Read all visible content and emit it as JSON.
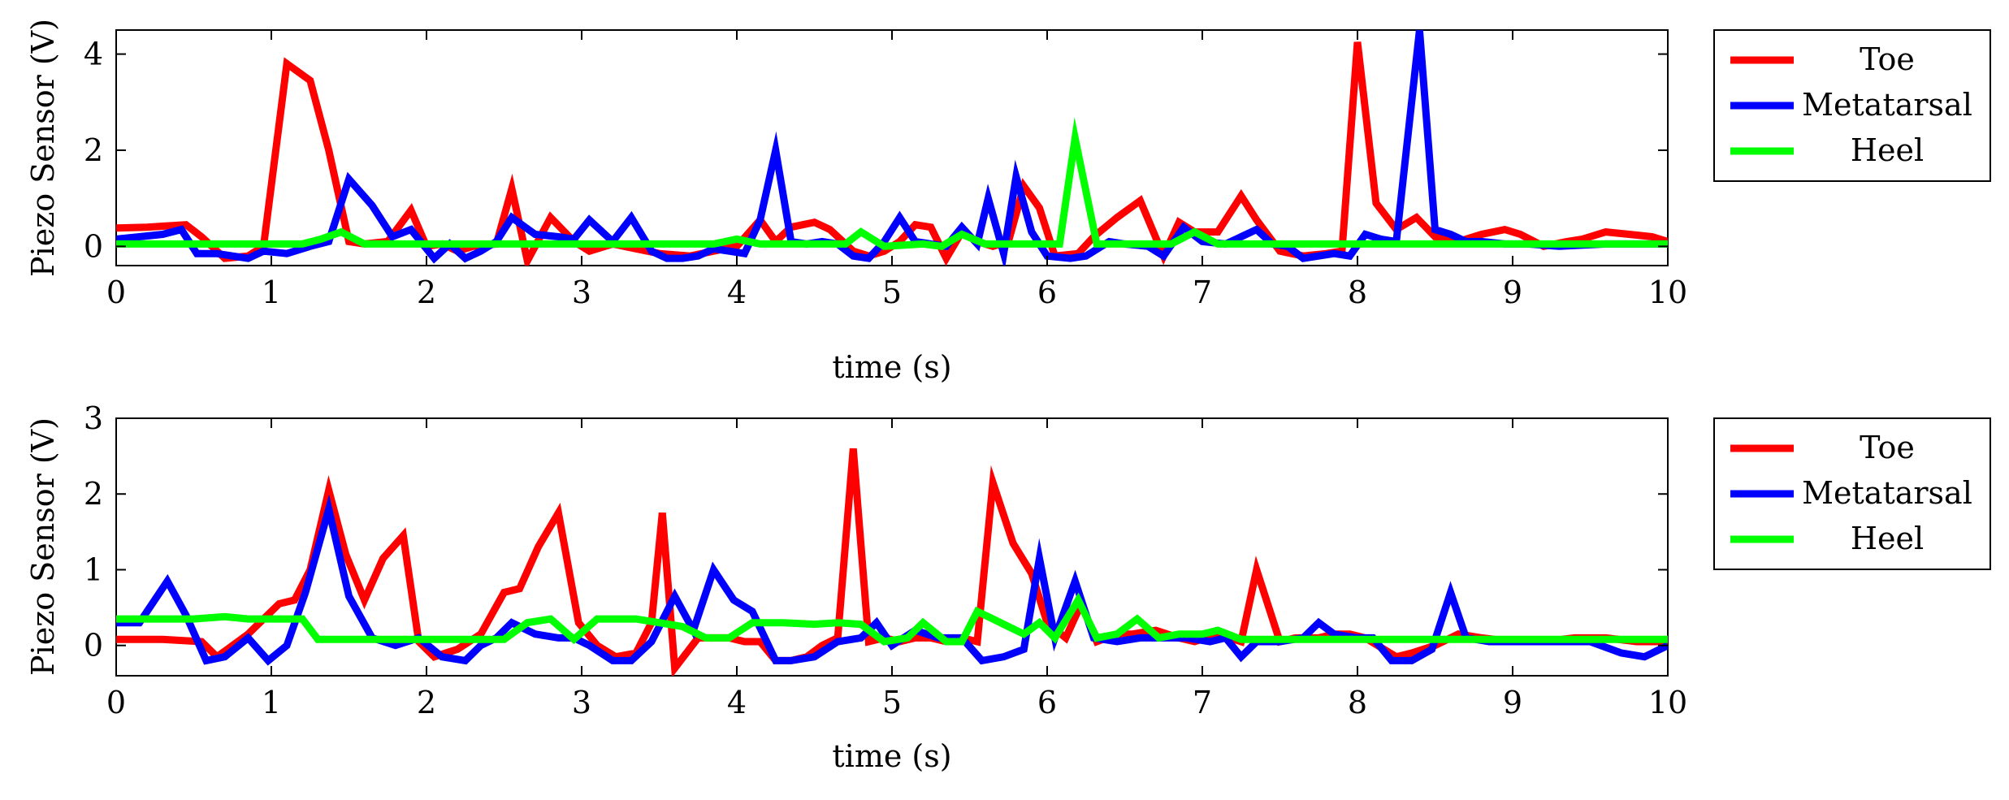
{
  "chart_data": [
    {
      "type": "line",
      "xlabel": "time (s)",
      "ylabel": "Piezo Sensor (V)",
      "xlim": [
        0,
        10
      ],
      "ylim": [
        -0.4,
        4.5
      ],
      "xticks": [
        0,
        1,
        2,
        3,
        4,
        5,
        6,
        7,
        8,
        9,
        10
      ],
      "yticks": [
        0,
        2,
        4
      ],
      "grid": false,
      "legend": "outside-right-top",
      "series": [
        {
          "name": "Toe",
          "color": "#ff0000",
          "x": [
            0,
            0.2,
            0.3,
            0.45,
            0.55,
            0.7,
            0.85,
            0.95,
            1.1,
            1.25,
            1.37,
            1.5,
            1.6,
            1.75,
            1.9,
            2.0,
            2.1,
            2.2,
            2.3,
            2.45,
            2.55,
            2.65,
            2.8,
            2.95,
            3.05,
            3.2,
            3.35,
            3.5,
            3.7,
            3.85,
            4.0,
            4.15,
            4.25,
            4.35,
            4.5,
            4.6,
            4.75,
            4.85,
            4.95,
            5.05,
            5.15,
            5.25,
            5.35,
            5.45,
            5.55,
            5.65,
            5.75,
            5.85,
            5.95,
            6.05,
            6.2,
            6.3,
            6.45,
            6.6,
            6.75,
            6.85,
            6.95,
            7.1,
            7.25,
            7.35,
            7.5,
            7.65,
            7.8,
            7.9,
            8.0,
            8.12,
            8.25,
            8.38,
            8.5,
            8.65,
            8.8,
            8.95,
            9.05,
            9.2,
            9.35,
            9.45,
            9.6,
            9.75,
            9.9,
            10.0
          ],
          "y": [
            0.38,
            0.4,
            0.42,
            0.45,
            0.2,
            -0.25,
            -0.2,
            0.0,
            3.8,
            3.45,
            2.0,
            0.1,
            0.05,
            0.1,
            0.75,
            0.0,
            0.05,
            -0.1,
            0.0,
            0.05,
            1.2,
            -0.3,
            0.6,
            0.1,
            -0.1,
            0.05,
            -0.05,
            -0.15,
            -0.2,
            -0.1,
            0.0,
            0.55,
            0.1,
            0.4,
            0.5,
            0.35,
            -0.1,
            -0.2,
            -0.1,
            0.1,
            0.45,
            0.4,
            -0.25,
            0.3,
            0.1,
            0.0,
            0.1,
            1.25,
            0.8,
            -0.2,
            -0.15,
            0.2,
            0.6,
            0.95,
            -0.2,
            0.5,
            0.3,
            0.3,
            1.05,
            0.55,
            -0.1,
            -0.2,
            -0.15,
            -0.1,
            4.25,
            0.9,
            0.35,
            0.6,
            0.2,
            0.1,
            0.25,
            0.35,
            0.25,
            0.0,
            0.1,
            0.15,
            0.3,
            0.25,
            0.2,
            0.1
          ]
        },
        {
          "name": "Metatarsal",
          "color": "#0000ff",
          "x": [
            0,
            0.15,
            0.3,
            0.42,
            0.52,
            0.65,
            0.75,
            0.85,
            0.95,
            1.1,
            1.25,
            1.37,
            1.5,
            1.65,
            1.78,
            1.9,
            2.05,
            2.15,
            2.25,
            2.35,
            2.45,
            2.55,
            2.7,
            2.85,
            2.95,
            3.05,
            3.2,
            3.32,
            3.45,
            3.55,
            3.65,
            3.75,
            3.85,
            3.95,
            4.05,
            4.15,
            4.25,
            4.35,
            4.45,
            4.55,
            4.65,
            4.75,
            4.85,
            4.95,
            5.05,
            5.15,
            5.25,
            5.35,
            5.45,
            5.55,
            5.62,
            5.72,
            5.8,
            5.9,
            6.0,
            6.15,
            6.25,
            6.4,
            6.5,
            6.65,
            6.75,
            6.88,
            7.0,
            7.15,
            7.25,
            7.35,
            7.45,
            7.55,
            7.65,
            7.75,
            7.85,
            7.95,
            8.05,
            8.15,
            8.25,
            8.4,
            8.5,
            8.6,
            8.7,
            8.8,
            8.95,
            9.1,
            9.3,
            9.6,
            10.0
          ],
          "y": [
            0.15,
            0.2,
            0.25,
            0.35,
            -0.15,
            -0.15,
            -0.2,
            -0.25,
            -0.1,
            -0.15,
            0.0,
            0.1,
            1.4,
            0.85,
            0.2,
            0.35,
            -0.25,
            0.05,
            -0.25,
            -0.1,
            0.1,
            0.6,
            0.25,
            0.2,
            0.15,
            0.55,
            0.1,
            0.6,
            -0.1,
            -0.25,
            -0.25,
            -0.2,
            -0.05,
            -0.1,
            -0.15,
            0.55,
            2.0,
            0.1,
            0.05,
            0.1,
            0.05,
            -0.2,
            -0.25,
            0.1,
            0.6,
            0.1,
            0.05,
            0.0,
            0.4,
            0.05,
            1.0,
            -0.15,
            1.45,
            0.3,
            -0.2,
            -0.25,
            -0.2,
            0.1,
            0.05,
            0.0,
            -0.2,
            0.4,
            0.1,
            0.05,
            0.2,
            0.35,
            0.05,
            0.0,
            -0.25,
            -0.2,
            -0.15,
            -0.2,
            0.25,
            0.15,
            0.1,
            4.5,
            0.35,
            0.25,
            0.1,
            0.1,
            0.05,
            0.05,
            0.0,
            0.05,
            0.05
          ]
        },
        {
          "name": "Heel",
          "color": "#00ff00",
          "x": [
            0,
            0.5,
            1.0,
            1.2,
            1.32,
            1.45,
            1.6,
            2.0,
            2.5,
            3.0,
            3.5,
            3.85,
            4.0,
            4.15,
            4.5,
            4.7,
            4.8,
            4.95,
            5.2,
            5.32,
            5.45,
            5.6,
            5.8,
            6.0,
            6.08,
            6.18,
            6.32,
            6.45,
            6.6,
            6.8,
            6.95,
            7.1,
            7.5,
            8.0,
            8.5,
            9.0,
            9.5,
            10.0
          ],
          "y": [
            0.05,
            0.05,
            0.05,
            0.05,
            0.15,
            0.3,
            0.05,
            0.05,
            0.05,
            0.05,
            0.05,
            0.05,
            0.15,
            0.05,
            0.05,
            0.05,
            0.3,
            0.0,
            0.05,
            0.0,
            0.25,
            0.05,
            0.05,
            0.05,
            0.05,
            2.25,
            0.05,
            0.05,
            0.05,
            0.05,
            0.3,
            0.05,
            0.05,
            0.05,
            0.05,
            0.05,
            0.05,
            0.05
          ]
        }
      ]
    },
    {
      "type": "line",
      "xlabel": "time (s)",
      "ylabel": "Piezo Sensor (V)",
      "xlim": [
        0,
        10
      ],
      "ylim": [
        -0.4,
        3.0
      ],
      "xticks": [
        0,
        1,
        2,
        3,
        4,
        5,
        6,
        7,
        8,
        9,
        10
      ],
      "yticks": [
        0,
        1,
        2,
        3
      ],
      "grid": false,
      "legend": "outside-right-top",
      "series": [
        {
          "name": "Toe",
          "color": "#ff0000",
          "x": [
            0,
            0.3,
            0.55,
            0.65,
            0.75,
            0.85,
            0.95,
            1.05,
            1.15,
            1.25,
            1.37,
            1.48,
            1.6,
            1.72,
            1.85,
            1.95,
            2.05,
            2.2,
            2.35,
            2.5,
            2.6,
            2.72,
            2.85,
            2.98,
            3.1,
            3.22,
            3.35,
            3.45,
            3.52,
            3.6,
            3.75,
            3.85,
            3.95,
            4.05,
            4.15,
            4.25,
            4.35,
            4.45,
            4.55,
            4.65,
            4.75,
            4.85,
            4.95,
            5.05,
            5.15,
            5.25,
            5.35,
            5.45,
            5.55,
            5.65,
            5.78,
            5.9,
            6.0,
            6.12,
            6.22,
            6.32,
            6.45,
            6.55,
            6.7,
            6.85,
            6.95,
            7.1,
            7.25,
            7.35,
            7.5,
            7.6,
            7.75,
            7.85,
            7.95,
            8.05,
            8.25,
            8.35,
            8.5,
            8.65,
            8.8,
            9.0,
            9.2,
            9.4,
            9.6,
            9.8,
            10.0
          ],
          "y": [
            0.08,
            0.08,
            0.05,
            -0.15,
            0.0,
            0.15,
            0.35,
            0.55,
            0.6,
            1.0,
            2.05,
            1.2,
            0.6,
            1.15,
            1.45,
            0.05,
            -0.15,
            -0.05,
            0.15,
            0.7,
            0.75,
            1.3,
            1.75,
            0.3,
            0.0,
            -0.15,
            -0.1,
            0.3,
            1.75,
            -0.3,
            0.1,
            0.1,
            0.1,
            0.05,
            0.05,
            -0.2,
            -0.2,
            -0.15,
            0.0,
            0.1,
            2.6,
            0.05,
            0.1,
            0.05,
            0.1,
            0.1,
            0.05,
            0.1,
            0.05,
            2.15,
            1.35,
            0.95,
            0.3,
            0.1,
            0.55,
            0.05,
            0.15,
            0.15,
            0.2,
            0.1,
            0.05,
            0.15,
            0.05,
            1.0,
            0.05,
            0.1,
            0.1,
            0.15,
            0.15,
            0.1,
            -0.15,
            -0.1,
            0.0,
            0.15,
            0.1,
            0.05,
            0.05,
            0.1,
            0.1,
            0.05,
            0.05
          ]
        },
        {
          "name": "Metatarsal",
          "color": "#0000ff",
          "x": [
            0,
            0.15,
            0.33,
            0.45,
            0.58,
            0.7,
            0.85,
            0.98,
            1.1,
            1.22,
            1.37,
            1.5,
            1.65,
            1.8,
            1.95,
            2.1,
            2.25,
            2.35,
            2.45,
            2.55,
            2.7,
            2.85,
            2.95,
            3.05,
            3.2,
            3.32,
            3.45,
            3.6,
            3.72,
            3.85,
            3.98,
            4.1,
            4.25,
            4.35,
            4.5,
            4.65,
            4.8,
            4.9,
            5.0,
            5.15,
            5.3,
            5.45,
            5.58,
            5.72,
            5.85,
            5.95,
            6.05,
            6.18,
            6.3,
            6.45,
            6.6,
            6.75,
            6.9,
            7.05,
            7.15,
            7.25,
            7.35,
            7.5,
            7.65,
            7.75,
            7.85,
            8.0,
            8.1,
            8.22,
            8.35,
            8.48,
            8.6,
            8.7,
            8.85,
            9.0,
            9.2,
            9.5,
            9.7,
            9.85,
            10.0
          ],
          "y": [
            0.3,
            0.3,
            0.85,
            0.4,
            -0.2,
            -0.15,
            0.1,
            -0.2,
            0.0,
            0.7,
            1.8,
            0.65,
            0.1,
            0.0,
            0.1,
            -0.15,
            -0.2,
            0.0,
            0.1,
            0.3,
            0.15,
            0.1,
            0.1,
            0.0,
            -0.2,
            -0.2,
            0.05,
            0.65,
            0.2,
            1.0,
            0.6,
            0.45,
            -0.2,
            -0.2,
            -0.15,
            0.05,
            0.1,
            0.3,
            0.0,
            0.2,
            0.1,
            0.1,
            -0.2,
            -0.15,
            -0.05,
            1.15,
            0.1,
            0.85,
            0.1,
            0.05,
            0.1,
            0.1,
            0.1,
            0.05,
            0.1,
            -0.15,
            0.05,
            0.05,
            0.1,
            0.3,
            0.15,
            0.1,
            0.1,
            -0.2,
            -0.2,
            -0.05,
            0.7,
            0.1,
            0.05,
            0.05,
            0.05,
            0.05,
            -0.1,
            -0.15,
            0.0
          ]
        },
        {
          "name": "Heel",
          "color": "#00ff00",
          "x": [
            0,
            0.3,
            0.5,
            0.7,
            0.85,
            0.95,
            1.1,
            1.2,
            1.3,
            1.5,
            2.0,
            2.5,
            2.65,
            2.8,
            2.95,
            3.1,
            3.2,
            3.35,
            3.5,
            3.65,
            3.8,
            3.95,
            4.1,
            4.3,
            4.5,
            4.65,
            4.8,
            4.95,
            5.1,
            5.2,
            5.35,
            5.45,
            5.55,
            5.65,
            5.75,
            5.85,
            5.95,
            6.05,
            6.2,
            6.32,
            6.45,
            6.58,
            6.72,
            6.85,
            7.0,
            7.1,
            7.25,
            7.5,
            8.0,
            9.0,
            10.0
          ],
          "y": [
            0.35,
            0.35,
            0.35,
            0.38,
            0.35,
            0.35,
            0.35,
            0.35,
            0.08,
            0.08,
            0.08,
            0.08,
            0.3,
            0.35,
            0.08,
            0.35,
            0.35,
            0.35,
            0.3,
            0.25,
            0.1,
            0.1,
            0.3,
            0.3,
            0.28,
            0.3,
            0.28,
            0.05,
            0.1,
            0.3,
            0.05,
            0.05,
            0.45,
            0.35,
            0.25,
            0.15,
            0.3,
            0.1,
            0.6,
            0.1,
            0.15,
            0.35,
            0.1,
            0.15,
            0.15,
            0.2,
            0.08,
            0.08,
            0.08,
            0.08,
            0.08
          ]
        }
      ]
    }
  ]
}
